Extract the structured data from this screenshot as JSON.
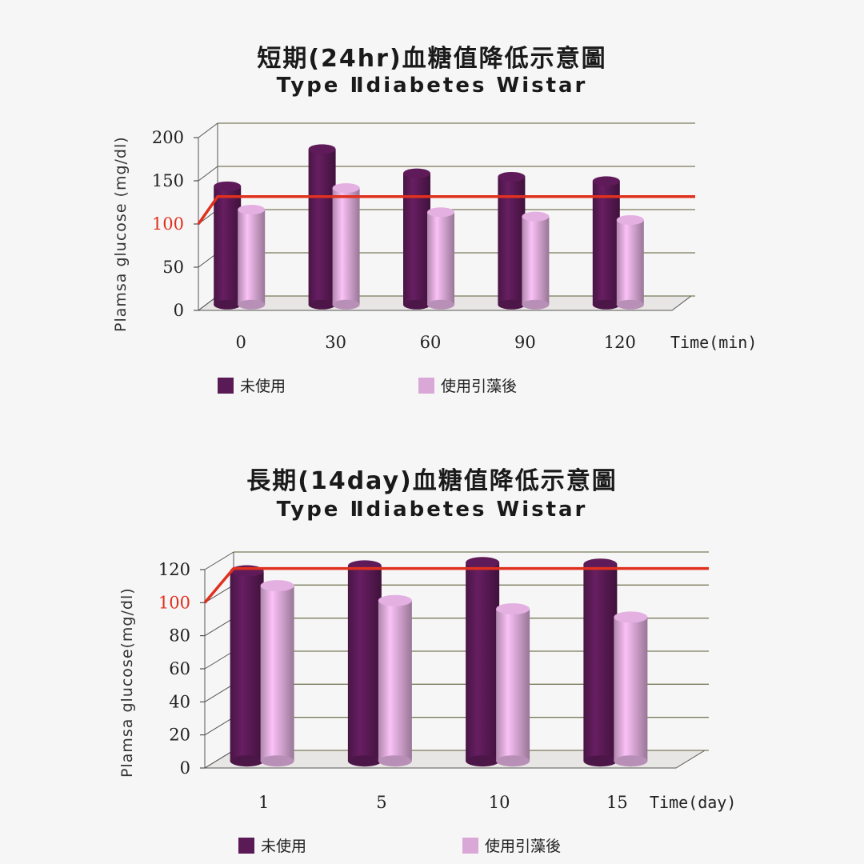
{
  "charts": [
    {
      "title_zh": "短期(24hr)血糖值降低示意圖",
      "title_en": "Type Ⅱdiabetes Wistar",
      "ylabel": "Plamsa glucose (mg/dl)",
      "xunit": "Time(min)",
      "legend": [
        "未使用",
        "使用引藻後"
      ]
    },
    {
      "title_zh": "長期(14day)血糖值降低示意圖",
      "title_en": "Type Ⅱdiabetes Wistar",
      "ylabel": "Plamsa glucose(mg/dl)",
      "xunit": "Time(day)",
      "legend": [
        "未使用",
        "使用引藻後"
      ]
    }
  ],
  "colors": {
    "untreated": "#5a1a55",
    "treated": "#d9a8d6",
    "reference": "#e0301e"
  },
  "chart_data": [
    {
      "type": "bar",
      "categories": [
        "0",
        "30",
        "60",
        "90",
        "120"
      ],
      "series": [
        {
          "name": "未使用",
          "values": [
            137,
            180,
            152,
            148,
            143
          ]
        },
        {
          "name": "使用引藻後",
          "values": [
            110,
            135,
            107,
            102,
            98
          ]
        }
      ],
      "yticks": [
        "0",
        "50",
        "100",
        "150",
        "200"
      ],
      "ylim": [
        0,
        200
      ],
      "reference_line": 115,
      "xlabel": "Time(min)",
      "ylabel": "Plamsa glucose (mg/dl)",
      "legend_position": "bottom",
      "grid": true
    },
    {
      "type": "bar",
      "categories": [
        "1",
        "5",
        "10",
        "15"
      ],
      "series": [
        {
          "name": "未使用",
          "values": [
            115,
            118,
            120,
            119
          ]
        },
        {
          "name": "使用引藻後",
          "values": [
            106,
            97,
            92,
            87
          ]
        }
      ],
      "yticks": [
        "0",
        "20",
        "40",
        "60",
        "80",
        "100",
        "120"
      ],
      "ylim": [
        0,
        120
      ],
      "reference_line": 110,
      "xlabel": "Time(day)",
      "ylabel": "Plamsa glucose(mg/dl)",
      "legend_position": "bottom",
      "grid": true
    }
  ]
}
